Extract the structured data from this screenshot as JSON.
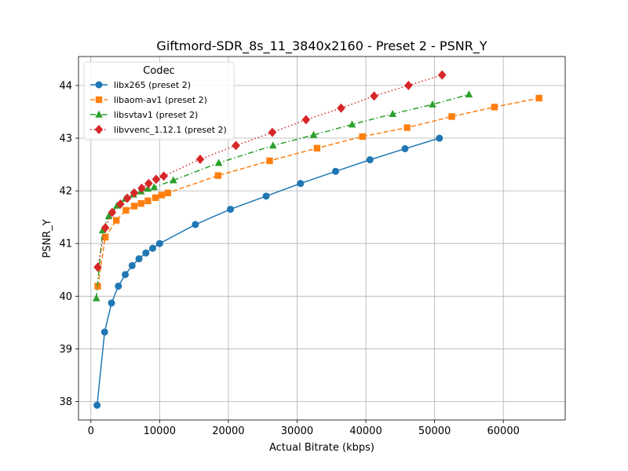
{
  "chart_data": {
    "type": "line",
    "title": "Giftmord-SDR_8s_11_3840x2160 - Preset 2 - PSNR_Y",
    "xlabel": "Actual Bitrate (kbps)",
    "ylabel": "PSNR_Y",
    "xlim": [
      -1800,
      69000
    ],
    "ylim": [
      37.65,
      44.55
    ],
    "xticks": [
      0,
      10000,
      20000,
      30000,
      40000,
      50000,
      60000
    ],
    "yticks": [
      38,
      39,
      40,
      41,
      42,
      43,
      44
    ],
    "grid": true,
    "legend": {
      "title": "Codec",
      "placement": "top-left"
    },
    "series": [
      {
        "name": "libx265 (preset 2)",
        "color": "#1f77b4",
        "marker": "circle",
        "linestyle": "solid",
        "x": [
          900,
          2000,
          3000,
          4000,
          5000,
          6000,
          7000,
          8000,
          9000,
          10000,
          15200,
          20300,
          25500,
          30500,
          35600,
          40600,
          45700,
          50700
        ],
        "y": [
          37.93,
          39.32,
          39.87,
          40.19,
          40.41,
          40.58,
          40.71,
          40.82,
          40.91,
          41.0,
          41.36,
          41.65,
          41.9,
          42.14,
          42.37,
          42.59,
          42.8,
          43.0
        ]
      },
      {
        "name": "libaom-av1 (preset 2)",
        "color": "#ff7f0e",
        "marker": "square",
        "linestyle": "dashed",
        "x": [
          1000,
          2100,
          3700,
          5100,
          6300,
          7300,
          8300,
          9400,
          10300,
          11200,
          18500,
          26000,
          32900,
          39500,
          46000,
          52500,
          58700,
          65200
        ],
        "y": [
          40.19,
          41.12,
          41.44,
          41.63,
          41.71,
          41.76,
          41.81,
          41.87,
          41.92,
          41.96,
          42.29,
          42.57,
          42.81,
          43.03,
          43.2,
          43.41,
          43.59,
          43.76
        ]
      },
      {
        "name": "libsvtav1 (preset 2)",
        "color": "#2ca02c",
        "marker": "triangle",
        "linestyle": "dashdot",
        "x": [
          800,
          1700,
          2600,
          3800,
          5000,
          6200,
          7300,
          8300,
          9200,
          12000,
          18600,
          26500,
          32400,
          38000,
          43900,
          49700,
          55000
        ],
        "y": [
          39.96,
          41.25,
          41.52,
          41.72,
          41.85,
          41.93,
          41.99,
          42.04,
          42.07,
          42.2,
          42.53,
          42.86,
          43.06,
          43.26,
          43.46,
          43.64,
          43.83
        ]
      },
      {
        "name": "libvvenc_1.12.1 (preset 2)",
        "color": "#d62728",
        "marker": "diamond",
        "linestyle": "dotted",
        "x": [
          1000,
          2100,
          3100,
          4300,
          5300,
          6300,
          7400,
          8400,
          9500,
          10600,
          15900,
          21100,
          26400,
          31300,
          36400,
          41200,
          46200,
          51100
        ],
        "y": [
          40.55,
          41.3,
          41.59,
          41.75,
          41.86,
          41.96,
          42.05,
          42.14,
          42.22,
          42.28,
          42.6,
          42.86,
          43.11,
          43.35,
          43.57,
          43.8,
          44.0,
          44.2
        ]
      }
    ]
  }
}
